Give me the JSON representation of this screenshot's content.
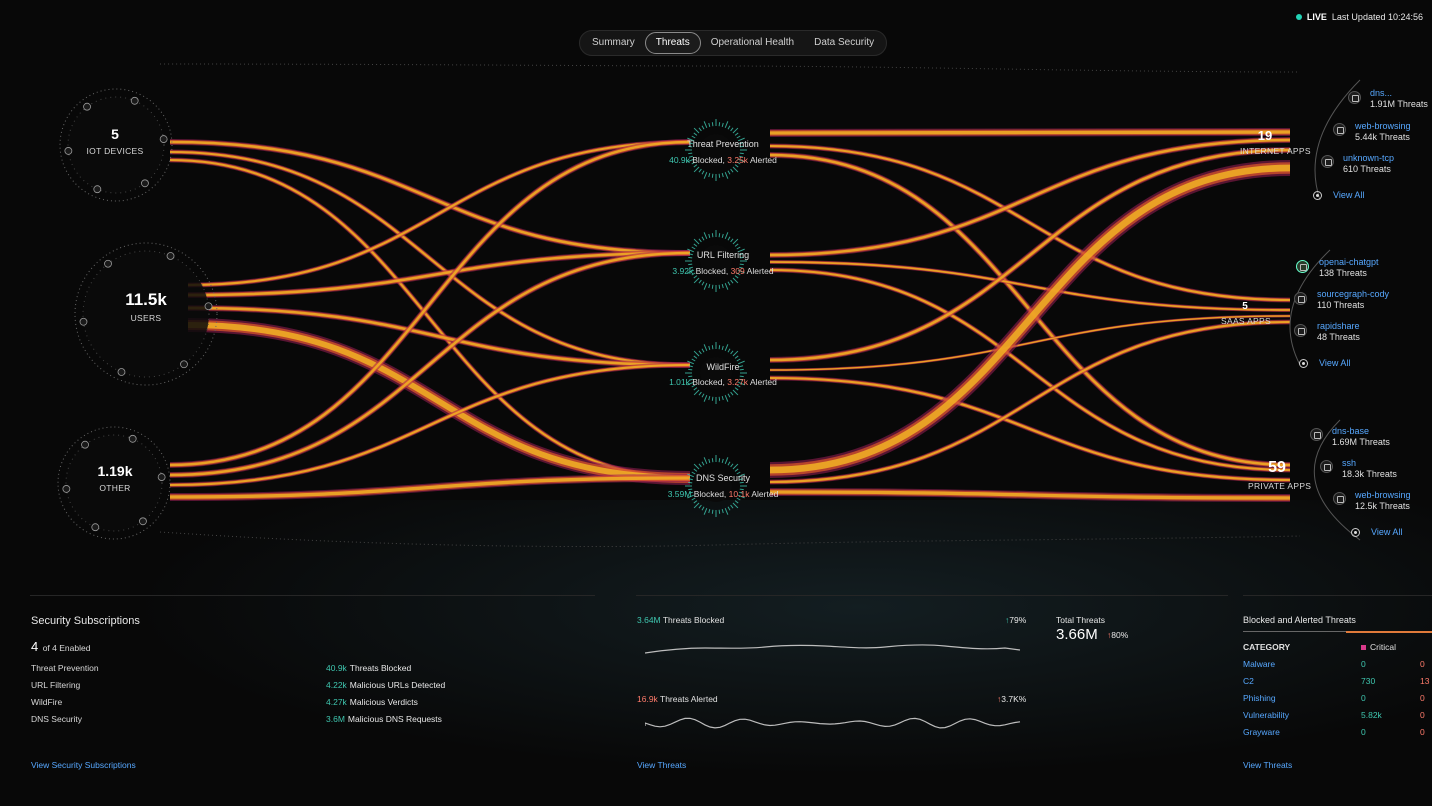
{
  "header": {
    "tabs": [
      {
        "label": "Summary",
        "active": false
      },
      {
        "label": "Threats",
        "active": true
      },
      {
        "label": "Operational Health",
        "active": false
      },
      {
        "label": "Data Security",
        "active": false
      }
    ],
    "live_label": "LIVE",
    "last_updated": "Last Updated 10:24:56"
  },
  "sources": [
    {
      "count": "5",
      "label": "IOT DEVICES"
    },
    {
      "count": "11.5k",
      "label": "USERS"
    },
    {
      "count": "1.19k",
      "label": "OTHER"
    }
  ],
  "hubs": [
    {
      "name": "Threat Prevention",
      "blocked": "40.9k",
      "blocked_word": "Blocked,",
      "alerted": "3.25k",
      "alerted_word": "Alerted"
    },
    {
      "name": "URL Filtering",
      "blocked": "3.92k",
      "blocked_word": "Blocked,",
      "alerted": "309",
      "alerted_word": "Alerted"
    },
    {
      "name": "WildFire",
      "blocked": "1.01k",
      "blocked_word": "Blocked,",
      "alerted": "3.27k",
      "alerted_word": "Alerted"
    },
    {
      "name": "DNS Security",
      "blocked": "3.59M",
      "blocked_word": "Blocked,",
      "alerted": "10.1k",
      "alerted_word": "Alerted"
    }
  ],
  "destinations": [
    {
      "count": "19",
      "label": "INTERNET APPS",
      "apps": [
        {
          "name": "dns...",
          "threats": "1.91M Threats"
        },
        {
          "name": "web-browsing",
          "threats": "5.44k Threats"
        },
        {
          "name": "unknown-tcp",
          "threats": "610 Threats"
        }
      ],
      "view_all": "View All"
    },
    {
      "count": "5",
      "label": "SAAS APPS",
      "apps": [
        {
          "name": "openai-chatgpt",
          "threats": "138 Threats"
        },
        {
          "name": "sourcegraph-cody",
          "threats": "110 Threats"
        },
        {
          "name": "rapidshare",
          "threats": "48 Threats"
        }
      ],
      "view_all": "View All"
    },
    {
      "count": "59",
      "label": "PRIVATE APPS",
      "apps": [
        {
          "name": "dns-base",
          "threats": "1.69M Threats"
        },
        {
          "name": "ssh",
          "threats": "18.3k Threats"
        },
        {
          "name": "web-browsing",
          "threats": "12.5k Threats"
        }
      ],
      "view_all": "View All"
    }
  ],
  "subscriptions": {
    "title": "Security Subscriptions",
    "enabled_count": "4",
    "enabled_text": "of 4 Enabled",
    "rows": [
      {
        "name": "Threat Prevention",
        "value": "40.9k",
        "metric": "Threats Blocked"
      },
      {
        "name": "URL Filtering",
        "value": "4.22k",
        "metric": "Malicious URLs Detected"
      },
      {
        "name": "WildFire",
        "value": "4.27k",
        "metric": "Malicious Verdicts"
      },
      {
        "name": "DNS Security",
        "value": "3.6M",
        "metric": "Malicious DNS Requests"
      }
    ],
    "link": "View Security Subscriptions"
  },
  "trends": {
    "blocked_value": "3.64M",
    "blocked_label": "Threats Blocked",
    "blocked_pct": "79%",
    "alerted_value": "16.9k",
    "alerted_label": "Threats Alerted",
    "alerted_pct": "3.7K%",
    "total_label": "Total Threats",
    "total_value": "3.66M",
    "total_pct": "80%",
    "link": "View Threats"
  },
  "blocked_alerted": {
    "title": "Blocked and Alerted Threats",
    "category_header": "CATEGORY",
    "critical_label": "Critical",
    "rows": [
      {
        "name": "Malware",
        "v1": "0",
        "v2": "0"
      },
      {
        "name": "C2",
        "v1": "730",
        "v2": "13"
      },
      {
        "name": "Phishing",
        "v1": "0",
        "v2": "0"
      },
      {
        "name": "Vulnerability",
        "v1": "5.82k",
        "v2": "0"
      },
      {
        "name": "Grayware",
        "v1": "0",
        "v2": "0"
      }
    ],
    "link": "View Threats"
  },
  "icons": {
    "live": "live-dot-icon",
    "view_all": "view-all-icon",
    "up_arrow": "arrow-up-icon"
  },
  "colors": {
    "accent_teal": "#3fc7b0",
    "alert_red": "#ff7b6b",
    "link_blue": "#57a8ff",
    "flow_orange": "#e8a020",
    "flow_magenta": "#c0306a"
  }
}
